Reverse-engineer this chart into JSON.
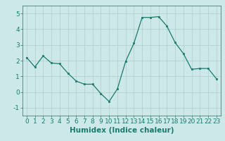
{
  "x": [
    0,
    1,
    2,
    3,
    4,
    5,
    6,
    7,
    8,
    9,
    10,
    11,
    12,
    13,
    14,
    15,
    16,
    17,
    18,
    19,
    20,
    21,
    22,
    23
  ],
  "y": [
    2.2,
    1.6,
    2.3,
    1.85,
    1.8,
    1.2,
    0.7,
    0.5,
    0.5,
    -0.1,
    -0.6,
    0.2,
    1.95,
    3.1,
    4.75,
    4.75,
    4.8,
    4.2,
    3.15,
    2.45,
    1.45,
    1.5,
    1.5,
    0.85
  ],
  "xlabel": "Humidex (Indice chaleur)",
  "ylim": [
    -1.5,
    5.5
  ],
  "xlim": [
    -0.5,
    23.5
  ],
  "yticks": [
    -1,
    0,
    1,
    2,
    3,
    4,
    5
  ],
  "xticks": [
    0,
    1,
    2,
    3,
    4,
    5,
    6,
    7,
    8,
    9,
    10,
    11,
    12,
    13,
    14,
    15,
    16,
    17,
    18,
    19,
    20,
    21,
    22,
    23
  ],
  "line_color": "#1a7a6e",
  "marker_color": "#1a7a6e",
  "bg_color": "#cce8e8",
  "grid_color": "#b0cccc",
  "xlabel_fontsize": 7.5,
  "tick_fontsize": 6.5
}
